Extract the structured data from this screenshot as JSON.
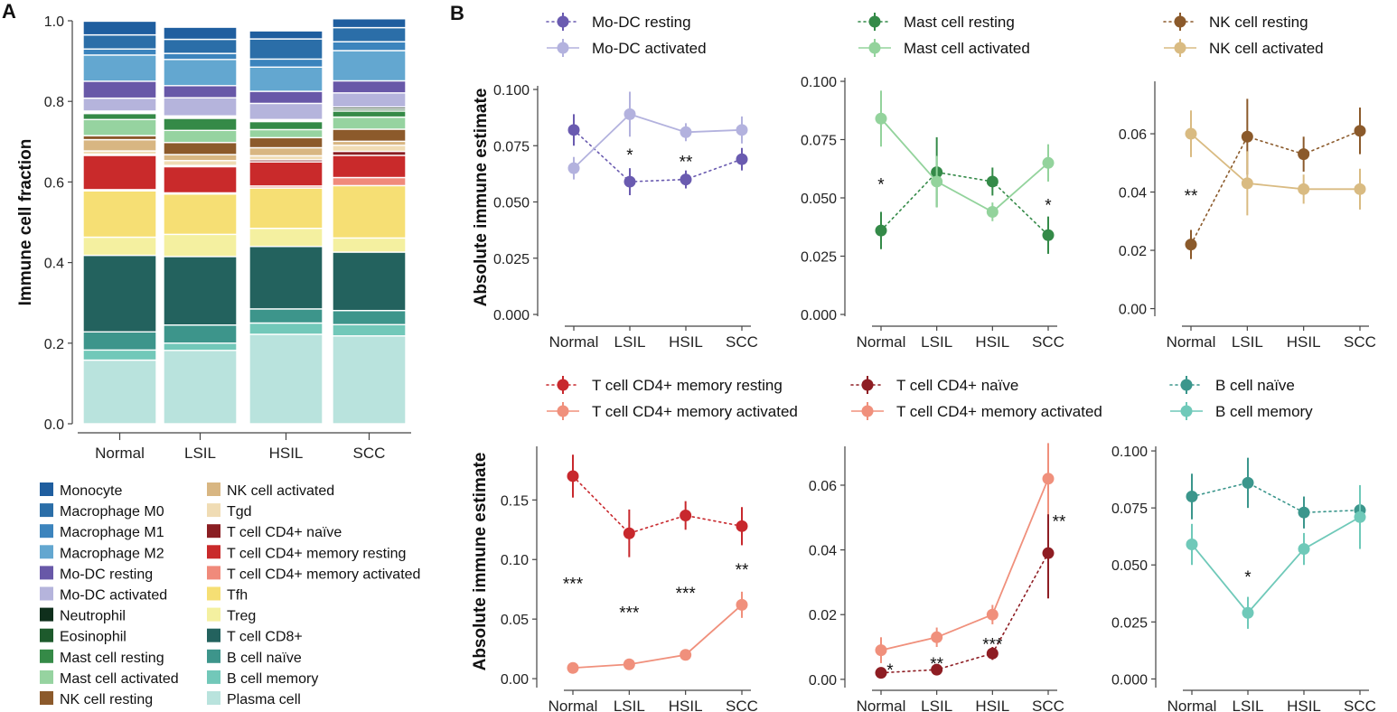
{
  "panel_labels": {
    "a": "A",
    "b": "B"
  },
  "chart_data": [
    {
      "id": "stacked",
      "type": "bar",
      "stacked": true,
      "ylabel": "Immune cell fraction",
      "ylim": [
        0,
        1
      ],
      "yticks": [
        "0.0",
        "0.2",
        "0.4",
        "0.6",
        "0.8",
        "1.0"
      ],
      "categories": [
        "Normal",
        "LSIL",
        "HSIL",
        "SCC"
      ],
      "series": [
        {
          "name": "Plasma cell",
          "color": "#b9e3dd",
          "values": [
            0.158,
            0.182,
            0.222,
            0.218
          ]
        },
        {
          "name": "B cell memory",
          "color": "#72c8b9",
          "values": [
            0.025,
            0.018,
            0.028,
            0.028
          ]
        },
        {
          "name": "B cell naïve",
          "color": "#3d958b",
          "values": [
            0.045,
            0.045,
            0.035,
            0.035
          ]
        },
        {
          "name": "T cell CD8+",
          "color": "#23625e",
          "values": [
            0.19,
            0.17,
            0.155,
            0.145
          ]
        },
        {
          "name": "Treg",
          "color": "#f4f0a0",
          "values": [
            0.045,
            0.055,
            0.045,
            0.035
          ]
        },
        {
          "name": "Tfh",
          "color": "#f6df74",
          "values": [
            0.115,
            0.1,
            0.1,
            0.13
          ]
        },
        {
          "name": "T cell CD4+ memory activated",
          "color": "#f08a7b",
          "values": [
            0.003,
            0.003,
            0.005,
            0.02
          ]
        },
        {
          "name": "T cell CD4+ memory resting",
          "color": "#c92a2b",
          "values": [
            0.085,
            0.065,
            0.06,
            0.055
          ]
        },
        {
          "name": "T cell CD4+ naïve",
          "color": "#8a1e22",
          "values": [
            0.003,
            0.003,
            0.005,
            0.01
          ]
        },
        {
          "name": "Tgd",
          "color": "#f0dcb4",
          "values": [
            0.008,
            0.012,
            0.01,
            0.015
          ]
        },
        {
          "name": "NK cell activated",
          "color": "#d8b682",
          "values": [
            0.028,
            0.015,
            0.02,
            0.01
          ]
        },
        {
          "name": "NK cell resting",
          "color": "#8c5a2b",
          "values": [
            0.01,
            0.03,
            0.025,
            0.03
          ]
        },
        {
          "name": "Mast cell activated",
          "color": "#96d3a0",
          "values": [
            0.04,
            0.03,
            0.02,
            0.03
          ]
        },
        {
          "name": "Mast cell resting",
          "color": "#358a47",
          "values": [
            0.015,
            0.03,
            0.02,
            0.015
          ]
        },
        {
          "name": "Eosinophil",
          "color": "#1d5a2c",
          "values": [
            0.003,
            0.003,
            0.003,
            0.005
          ]
        },
        {
          "name": "Neutrophil",
          "color": "#0f2f1c",
          "values": [
            0.003,
            0.003,
            0.002,
            0.005
          ]
        },
        {
          "name": "Mo-DC activated",
          "color": "#b5b4dc",
          "values": [
            0.032,
            0.045,
            0.04,
            0.035
          ]
        },
        {
          "name": "Mo-DC resting",
          "color": "#6858a8",
          "values": [
            0.042,
            0.03,
            0.03,
            0.03
          ]
        },
        {
          "name": "Macrophage M2",
          "color": "#63a7d0",
          "values": [
            0.065,
            0.065,
            0.06,
            0.075
          ]
        },
        {
          "name": "Macrophage M1",
          "color": "#3c84bd",
          "values": [
            0.015,
            0.015,
            0.02,
            0.022
          ]
        },
        {
          "name": "Macrophage M0",
          "color": "#2b6ea8",
          "values": [
            0.035,
            0.035,
            0.05,
            0.035
          ]
        },
        {
          "name": "Monocyte",
          "color": "#1f5e9f",
          "values": [
            0.034,
            0.03,
            0.02,
            0.022
          ]
        }
      ],
      "legend_col1": [
        "Monocyte",
        "Macrophage M0",
        "Macrophage M1",
        "Macrophage M2",
        "Mo-DC resting",
        "Mo-DC activated",
        "Neutrophil",
        "Eosinophil",
        "Mast cell resting",
        "Mast cell activated",
        "NK cell resting"
      ],
      "legend_col2": [
        "NK cell activated",
        "Tgd",
        "T cell CD4+ naïve",
        "T cell CD4+ memory resting",
        "T cell CD4+ memory activated",
        "Tfh",
        "Treg",
        "T cell CD8+",
        "B cell naïve",
        "B cell memory",
        "Plasma cell"
      ]
    },
    {
      "id": "modc",
      "type": "line",
      "categories": [
        "Normal",
        "LSIL",
        "HSIL",
        "SCC"
      ],
      "ylabel": "Absolute immune estimate",
      "ylim": [
        0,
        0.1
      ],
      "yticks": [
        0,
        0.025,
        0.05,
        0.075,
        0.1
      ],
      "ytick_labels": [
        "0.000",
        "0.025",
        "0.050",
        "0.075",
        "0.100"
      ],
      "series": [
        {
          "name": "Mo-DC resting",
          "color": "#6a5bb0",
          "dashed": true,
          "values": [
            0.082,
            0.059,
            0.06,
            0.069
          ],
          "err": [
            0.007,
            0.006,
            0.004,
            0.005
          ]
        },
        {
          "name": "Mo-DC activated",
          "color": "#b3b2de",
          "dashed": false,
          "values": [
            0.065,
            0.089,
            0.081,
            0.082
          ],
          "err": [
            0.005,
            0.01,
            0.004,
            0.006
          ]
        }
      ],
      "annotations": [
        {
          "cat": 1,
          "y": 0.071,
          "text": "*"
        },
        {
          "cat": 2,
          "y": 0.068,
          "text": "**"
        }
      ]
    },
    {
      "id": "mast",
      "type": "line",
      "categories": [
        "Normal",
        "LSIL",
        "HSIL",
        "SCC"
      ],
      "ylabel": "",
      "ylim": [
        0,
        0.1
      ],
      "yticks": [
        0,
        0.025,
        0.05,
        0.075,
        0.1
      ],
      "ytick_labels": [
        "0.000",
        "0.025",
        "0.050",
        "0.075",
        "0.100"
      ],
      "series": [
        {
          "name": "Mast cell resting",
          "color": "#348a48",
          "dashed": true,
          "values": [
            0.036,
            0.061,
            0.057,
            0.034
          ],
          "err": [
            0.008,
            0.015,
            0.006,
            0.008
          ]
        },
        {
          "name": "Mast cell activated",
          "color": "#93d39c",
          "dashed": false,
          "values": [
            0.084,
            0.057,
            0.044,
            0.065
          ],
          "err": [
            0.012,
            0.011,
            0.004,
            0.008
          ]
        }
      ],
      "annotations": [
        {
          "cat": 0,
          "y": 0.056,
          "text": "*"
        },
        {
          "cat": 3,
          "y": 0.047,
          "text": "*"
        }
      ]
    },
    {
      "id": "nk",
      "type": "line",
      "categories": [
        "Normal",
        "LSIL",
        "HSIL",
        "SCC"
      ],
      "ylabel": "",
      "ylim": [
        -0.002,
        0.078
      ],
      "yticks": [
        0,
        0.02,
        0.04,
        0.06
      ],
      "ytick_labels": [
        "0.00",
        "0.02",
        "0.04",
        "0.06"
      ],
      "series": [
        {
          "name": "NK cell resting",
          "color": "#8b5a2b",
          "dashed": true,
          "values": [
            0.022,
            0.059,
            0.053,
            0.061
          ],
          "err": [
            0.005,
            0.013,
            0.006,
            0.008
          ]
        },
        {
          "name": "NK cell activated",
          "color": "#d9bb82",
          "dashed": false,
          "values": [
            0.06,
            0.043,
            0.041,
            0.041
          ],
          "err": [
            0.008,
            0.011,
            0.005,
            0.007
          ]
        }
      ],
      "annotations": [
        {
          "cat": 0,
          "y": 0.039,
          "text": "**"
        }
      ]
    },
    {
      "id": "cd4mem",
      "type": "line",
      "categories": [
        "Normal",
        "LSIL",
        "HSIL",
        "SCC"
      ],
      "ylabel": "Absolute immune estimate",
      "ylim": [
        -0.006,
        0.195
      ],
      "yticks": [
        0,
        0.05,
        0.1,
        0.15
      ],
      "ytick_labels": [
        "0.00",
        "0.05",
        "0.10",
        "0.15"
      ],
      "series": [
        {
          "name": "T cell CD4+ memory resting",
          "color": "#c8282d",
          "dashed": true,
          "values": [
            0.17,
            0.122,
            0.137,
            0.128
          ],
          "err": [
            0.018,
            0.02,
            0.012,
            0.016
          ]
        },
        {
          "name": "T cell CD4+ memory activated",
          "color": "#f0907c",
          "dashed": false,
          "values": [
            0.009,
            0.012,
            0.02,
            0.062
          ],
          "err": [
            0.002,
            0.002,
            0.003,
            0.011
          ]
        }
      ],
      "annotations": [
        {
          "cat": 0,
          "y": 0.08,
          "text": "***"
        },
        {
          "cat": 1,
          "y": 0.056,
          "text": "***"
        },
        {
          "cat": 2,
          "y": 0.072,
          "text": "***"
        },
        {
          "cat": 3,
          "y": 0.092,
          "text": "**"
        }
      ]
    },
    {
      "id": "cd4naive",
      "type": "line",
      "categories": [
        "Normal",
        "LSIL",
        "HSIL",
        "SCC"
      ],
      "ylabel": "",
      "ylim": [
        -0.002,
        0.072
      ],
      "yticks": [
        0,
        0.02,
        0.04,
        0.06
      ],
      "ytick_labels": [
        "0.00",
        "0.02",
        "0.04",
        "0.06"
      ],
      "series": [
        {
          "name": "T cell CD4+ naïve",
          "color": "#8e1d23",
          "dashed": true,
          "values": [
            0.002,
            0.003,
            0.008,
            0.039
          ],
          "err": [
            0.001,
            0.001,
            0.002,
            0.014
          ]
        },
        {
          "name": "T cell CD4+ memory activated",
          "color": "#f0907c",
          "dashed": false,
          "values": [
            0.009,
            0.013,
            0.02,
            0.062
          ],
          "err": [
            0.004,
            0.003,
            0.003,
            0.011
          ]
        }
      ],
      "annotations": [
        {
          "cat": 0,
          "y": 0.003,
          "text": "*",
          "dx": 10
        },
        {
          "cat": 1,
          "y": 0.005,
          "text": "**"
        },
        {
          "cat": 2,
          "y": 0.011,
          "text": "***"
        },
        {
          "cat": 3,
          "y": 0.049,
          "text": "**",
          "dx": 12
        }
      ]
    },
    {
      "id": "bcell",
      "type": "line",
      "categories": [
        "Normal",
        "LSIL",
        "HSIL",
        "SCC"
      ],
      "ylabel": "",
      "ylim": [
        -0.003,
        0.102
      ],
      "yticks": [
        0,
        0.025,
        0.05,
        0.075,
        0.1
      ],
      "ytick_labels": [
        "0.000",
        "0.025",
        "0.050",
        "0.075",
        "0.100"
      ],
      "series": [
        {
          "name": "B cell naïve",
          "color": "#3b968c",
          "dashed": true,
          "values": [
            0.08,
            0.086,
            0.073,
            0.074
          ],
          "err": [
            0.01,
            0.011,
            0.007,
            0.01
          ]
        },
        {
          "name": "B cell memory",
          "color": "#6fc9b9",
          "dashed": false,
          "values": [
            0.059,
            0.029,
            0.057,
            0.071
          ],
          "err": [
            0.009,
            0.007,
            0.007,
            0.014
          ]
        }
      ],
      "annotations": [
        {
          "cat": 1,
          "y": 0.045,
          "text": "*"
        }
      ]
    }
  ]
}
